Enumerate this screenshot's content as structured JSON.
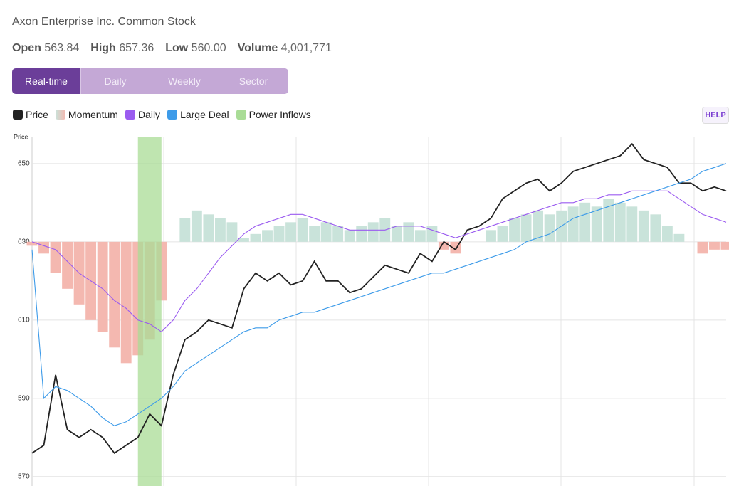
{
  "header": {
    "subtitle": "Axon Enterprise Inc. Common Stock",
    "stats": [
      {
        "label": "Open",
        "value": "563.84"
      },
      {
        "label": "High",
        "value": "657.36"
      },
      {
        "label": "Low",
        "value": "560.00"
      },
      {
        "label": "Volume",
        "value": "4,001,771"
      }
    ]
  },
  "tabs": [
    "Real-time",
    "Daily",
    "Weekly",
    "Sector"
  ],
  "help": "HELP",
  "chart_data": {
    "type": "line",
    "ylabel": "Price",
    "ylim": [
      567.6,
      656.7
    ],
    "yticks": [
      570,
      590,
      610,
      630,
      650
    ],
    "grid": true,
    "categories": [
      null,
      null,
      null,
      null,
      null,
      null,
      null,
      null,
      null,
      null,
      null,
      null,
      null,
      null,
      null,
      null,
      null,
      null,
      null,
      null,
      null,
      null,
      null,
      null,
      null,
      null,
      null,
      null,
      null,
      null,
      null,
      null,
      null,
      null,
      null,
      null,
      null,
      null,
      null,
      null,
      null,
      null,
      null,
      null,
      null,
      null,
      null,
      null,
      null,
      null,
      null,
      null,
      null,
      null,
      null,
      null,
      null,
      null,
      null,
      null
    ],
    "series": [
      {
        "name": "Price",
        "color": "#222222",
        "values": [
          576,
          578,
          596,
          582,
          580,
          582,
          580,
          576,
          578,
          580,
          586,
          583,
          596,
          605,
          607,
          610,
          609,
          608,
          618,
          622,
          620,
          622,
          619,
          620,
          625,
          620,
          620,
          617,
          618,
          621,
          624,
          623,
          622,
          627,
          625,
          630,
          628,
          633,
          634,
          636,
          641,
          643,
          645,
          646,
          643,
          645,
          648,
          649,
          650,
          651,
          652,
          655,
          651,
          650,
          649,
          645,
          645,
          643,
          644,
          643
        ]
      },
      {
        "name": "Momentum",
        "type": "bar",
        "color": "#f4b8b0",
        "color_up": "#c9e3da",
        "baseline": 630,
        "values": [
          629,
          627,
          622,
          618,
          614,
          610,
          607,
          603,
          599,
          601,
          605,
          615,
          630,
          636,
          638,
          637,
          636,
          635,
          631,
          632,
          633,
          634,
          635,
          636,
          634,
          635,
          634,
          633,
          634,
          635,
          636,
          634,
          635,
          633,
          634,
          628,
          627,
          630,
          630,
          633,
          634,
          636,
          637,
          638,
          637,
          638,
          639,
          640,
          639,
          641,
          640,
          639,
          638,
          637,
          634,
          632,
          630,
          627,
          628,
          628
        ]
      },
      {
        "name": "Daily",
        "color": "#9b5cf0",
        "values": [
          630,
          629,
          628,
          625,
          622,
          620,
          618,
          615,
          613,
          610,
          609,
          607,
          610,
          615,
          618,
          622,
          626,
          629,
          632,
          634,
          635,
          636,
          637,
          637,
          636,
          635,
          634,
          633,
          633,
          633,
          633,
          634,
          634,
          634,
          633,
          632,
          631,
          632,
          633,
          634,
          635,
          636,
          637,
          638,
          639,
          640,
          640,
          641,
          641,
          642,
          642,
          643,
          643,
          643,
          643,
          641,
          639,
          637,
          636,
          635
        ]
      },
      {
        "name": "Large Deal",
        "color": "#3d9be9",
        "values": [
          628,
          590,
          593,
          592,
          590,
          588,
          585,
          583,
          584,
          586,
          588,
          590,
          593,
          597,
          599,
          601,
          603,
          605,
          607,
          608,
          608,
          610,
          611,
          612,
          612,
          613,
          614,
          615,
          616,
          617,
          618,
          619,
          620,
          621,
          622,
          622,
          623,
          624,
          625,
          626,
          627,
          628,
          630,
          631,
          632,
          634,
          636,
          637,
          638,
          639,
          640,
          641,
          642,
          643,
          644,
          645,
          646,
          648,
          649,
          650
        ]
      }
    ],
    "band": {
      "name": "Power Inflows",
      "color": "#a9dc96",
      "range": [
        9,
        11
      ]
    }
  }
}
